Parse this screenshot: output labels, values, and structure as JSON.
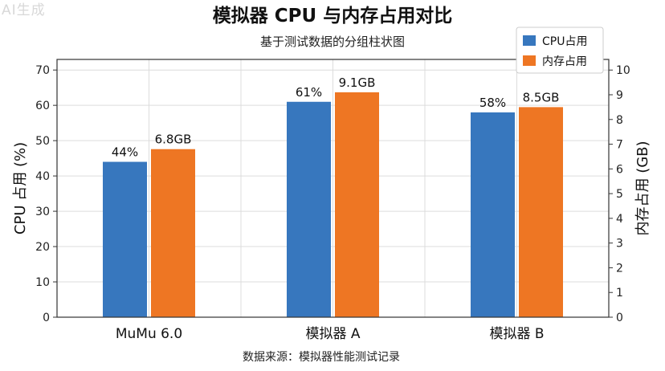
{
  "watermark": "AI生成",
  "chart_data": {
    "type": "bar",
    "title": "模拟器 CPU 与内存占用对比",
    "subtitle": "基于测试数据的分组柱状图",
    "categories": [
      "MuMu 6.0",
      "模拟器 A",
      "模拟器 B"
    ],
    "series": [
      {
        "name": "CPU占用",
        "axis": "left",
        "color": "#3777be",
        "values": [
          44,
          61,
          58
        ],
        "labels": [
          "44%",
          "61%",
          "58%"
        ]
      },
      {
        "name": "内存占用",
        "axis": "right",
        "color": "#ee7623",
        "values": [
          6.8,
          9.1,
          8.5
        ],
        "labels": [
          "6.8GB",
          "9.1GB",
          "8.5GB"
        ]
      }
    ],
    "ylabel": "CPU 占用 (%)",
    "y2label": "内存占用 (GB)",
    "ylim": [
      0,
      73
    ],
    "y2lim": [
      0,
      10.43
    ],
    "yticks": [
      0,
      10,
      20,
      30,
      40,
      50,
      60,
      70
    ],
    "y2ticks": [
      0,
      1,
      2,
      3,
      4,
      5,
      6,
      7,
      8,
      9,
      10
    ],
    "grid": true,
    "legend_position": "top-right",
    "caption": "数据来源：模拟器性能测试记录"
  }
}
